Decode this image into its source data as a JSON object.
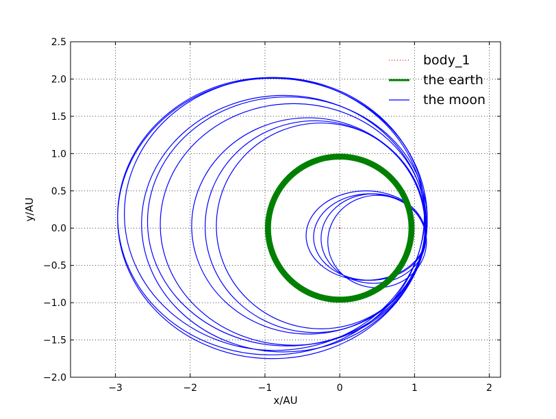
{
  "chart_data": {
    "type": "line",
    "title": "",
    "xlabel": "x/AU",
    "ylabel": "y/AU",
    "xlim": [
      -3.6,
      2.15
    ],
    "ylim": [
      -2.0,
      2.5
    ],
    "xticks": [
      -3,
      -2,
      -1,
      0,
      1,
      2
    ],
    "yticks": [
      -2.0,
      -1.5,
      -1.0,
      -0.5,
      0.0,
      0.5,
      1.0,
      1.5,
      2.0,
      2.5
    ],
    "grid": true,
    "legend_position": "top-right",
    "series": [
      {
        "name": "body_1",
        "color": "#ff0000",
        "style": "dotted",
        "points": [
          [
            0.0,
            0.0
          ]
        ]
      },
      {
        "name": "the earth",
        "color": "#008000",
        "style": "solid-thick",
        "center": [
          0.0,
          0.0
        ],
        "radius_inner": 0.92,
        "radius_outer": 1.0
      },
      {
        "name": "the moon",
        "color": "#0000ff",
        "style": "solid",
        "loops": [
          {
            "cx": -0.92,
            "cy": 0.16,
            "rx": 2.05,
            "ry": 1.86
          },
          {
            "cx": -0.9,
            "cy": 0.13,
            "rx": 2.07,
            "ry": 1.88
          },
          {
            "cx": -0.87,
            "cy": 0.19,
            "rx": 2.01,
            "ry": 1.83
          },
          {
            "cx": -0.75,
            "cy": 0.06,
            "rx": 1.9,
            "ry": 1.72
          },
          {
            "cx": -0.7,
            "cy": 0.09,
            "rx": 1.87,
            "ry": 1.67
          },
          {
            "cx": -0.62,
            "cy": 0.05,
            "rx": 1.78,
            "ry": 1.62
          },
          {
            "cx": -0.42,
            "cy": 0.03,
            "rx": 1.56,
            "ry": 1.45
          },
          {
            "cx": -0.33,
            "cy": 0.02,
            "rx": 1.47,
            "ry": 1.42
          },
          {
            "cx": -0.25,
            "cy": 0.03,
            "rx": 1.4,
            "ry": 1.38
          },
          {
            "cx": 0.35,
            "cy": -0.1,
            "rx": 0.8,
            "ry": 0.6
          },
          {
            "cx": 0.4,
            "cy": -0.12,
            "rx": 0.75,
            "ry": 0.58
          },
          {
            "cx": 0.45,
            "cy": -0.14,
            "rx": 0.7,
            "ry": 0.6
          },
          {
            "cx": 0.5,
            "cy": -0.18,
            "rx": 0.66,
            "ry": 0.62
          }
        ]
      }
    ]
  }
}
